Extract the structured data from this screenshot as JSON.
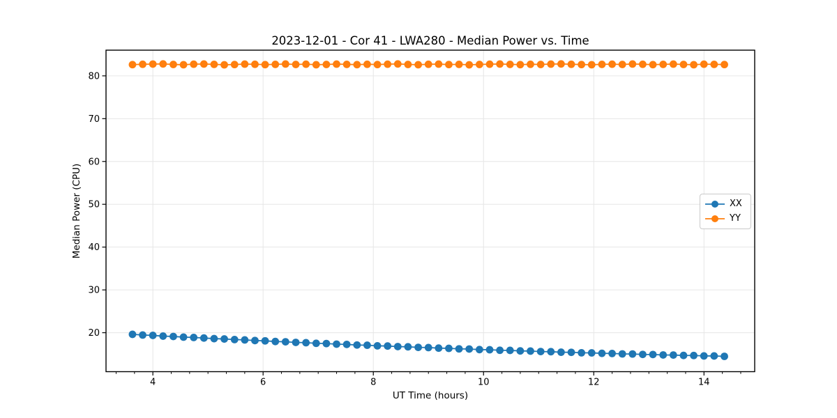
{
  "chart_data": {
    "type": "line",
    "title": "2023-12-01 - Cor 41 - LWA280 - Median Power vs. Time",
    "xlabel": "UT Time (hours)",
    "ylabel": "Median Power (CPU)",
    "xlim": [
      3.15,
      14.92
    ],
    "ylim": [
      10.9,
      86.0
    ],
    "x_major_ticks": [
      4,
      6,
      8,
      10,
      12,
      14
    ],
    "x_minor_ticks_per_hour": 3,
    "y_major_ticks": [
      20,
      30,
      40,
      50,
      60,
      70,
      80
    ],
    "grid": true,
    "grid_color": "#e6e6e6",
    "legend_position": "center right",
    "x": [
      3.63,
      3.815,
      4.0,
      4.185,
      4.371,
      4.556,
      4.741,
      4.926,
      5.111,
      5.296,
      5.482,
      5.667,
      5.852,
      6.037,
      6.222,
      6.407,
      6.593,
      6.778,
      6.963,
      7.148,
      7.333,
      7.518,
      7.704,
      7.889,
      8.074,
      8.259,
      8.444,
      8.629,
      8.815,
      9.0,
      9.185,
      9.37,
      9.555,
      9.74,
      9.926,
      10.111,
      10.296,
      10.481,
      10.666,
      10.851,
      11.037,
      11.222,
      11.407,
      11.592,
      11.777,
      11.962,
      12.148,
      12.333,
      12.518,
      12.703,
      12.888,
      13.073,
      13.259,
      13.444,
      13.629,
      13.814,
      13.999,
      14.184,
      14.37
    ],
    "series": [
      {
        "name": "XX",
        "color": "#1f77b4",
        "values": [
          19.62,
          19.46,
          19.37,
          19.21,
          19.12,
          18.97,
          18.89,
          18.76,
          18.62,
          18.54,
          18.4,
          18.32,
          18.17,
          18.1,
          17.95,
          17.88,
          17.74,
          17.67,
          17.53,
          17.47,
          17.33,
          17.27,
          17.13,
          17.08,
          16.94,
          16.89,
          16.76,
          16.71,
          16.58,
          16.53,
          16.4,
          16.35,
          16.23,
          16.19,
          16.06,
          16.02,
          15.9,
          15.87,
          15.75,
          15.71,
          15.6,
          15.57,
          15.45,
          15.42,
          15.31,
          15.29,
          15.18,
          15.15,
          15.05,
          15.03,
          14.93,
          14.91,
          14.81,
          14.79,
          14.69,
          14.68,
          14.58,
          14.57,
          14.48
        ]
      },
      {
        "name": "YY",
        "color": "#ff7f0e",
        "values": [
          82.62,
          82.7,
          82.75,
          82.78,
          82.66,
          82.6,
          82.72,
          82.76,
          82.68,
          82.58,
          82.64,
          82.74,
          82.7,
          82.62,
          82.68,
          82.76,
          82.66,
          82.72,
          82.6,
          82.66,
          82.74,
          82.68,
          82.62,
          82.7,
          82.64,
          82.72,
          82.78,
          82.66,
          82.6,
          82.7,
          82.74,
          82.64,
          82.68,
          82.58,
          82.66,
          82.72,
          82.76,
          82.68,
          82.62,
          82.7,
          82.66,
          82.74,
          82.78,
          82.7,
          82.64,
          82.6,
          82.68,
          82.72,
          82.66,
          82.76,
          82.7,
          82.62,
          82.68,
          82.74,
          82.66,
          82.6,
          82.72,
          82.68,
          82.64
        ]
      }
    ]
  }
}
